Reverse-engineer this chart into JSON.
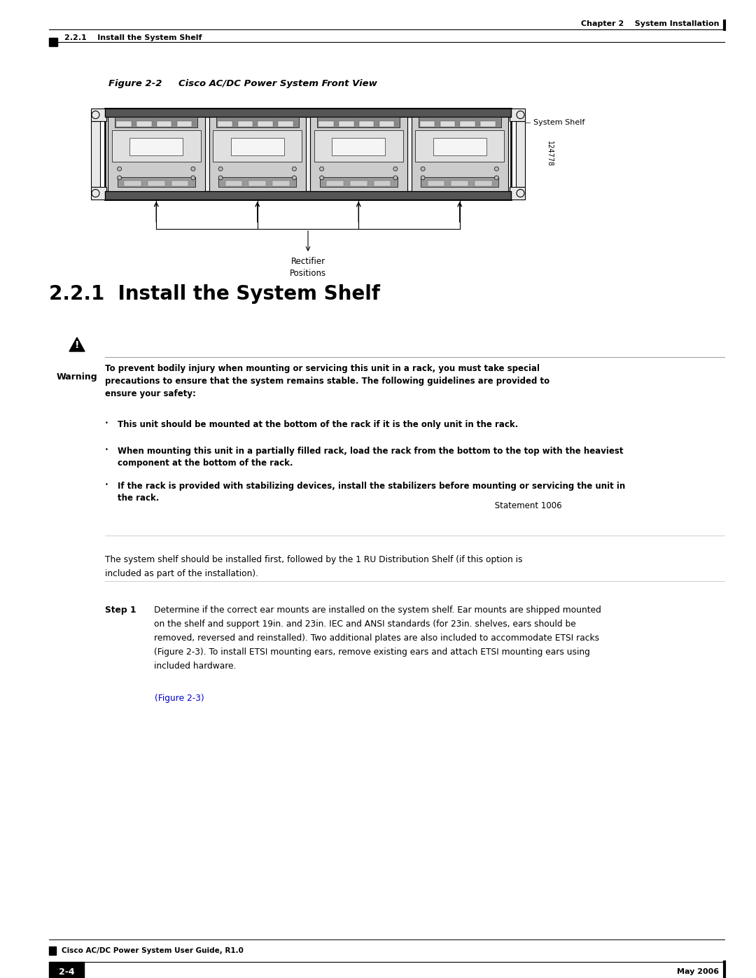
{
  "page_width": 10.8,
  "page_height": 13.97,
  "bg_color": "#ffffff",
  "header_text_right": "Chapter 2    System Installation",
  "header_text_left": "2.2.1    Install the System Shelf",
  "figure_label": "Figure 2-2",
  "figure_title": "Cisco AC/DC Power System Front View",
  "system_shelf_label": "System Shelf",
  "rectifier_label_line1": "Rectifier",
  "rectifier_label_line2": "Positions",
  "figure_number_sideways": "124778",
  "section_title": "2.2.1  Install the System Shelf",
  "warning_label": "Warning",
  "warning_bold_text": "To prevent bodily injury when mounting or servicing this unit in a rack, you must take special\nprecautions to ensure that the system remains stable. The following guidelines are provided to\nensure your safety:",
  "bullet1_bold": "This unit should be mounted at the bottom of the rack if it is the only unit in the rack.",
  "bullet2_bold": "When mounting this unit in a partially filled rack, load the rack from the bottom to the top with the heaviest\ncomponent at the bottom of the rack.",
  "bullet3_bold": "If the rack is provided with stabilizing devices, install the stabilizers before mounting or servicing the unit in\nthe rack.",
  "bullet3_normal": " Statement 1006",
  "body_text": "The system shelf should be installed first, followed by the 1 RU Distribution Shelf (if this option is\nincluded as part of the installation).",
  "step1_label": "Step 1",
  "step1_text_part1": "Determine if the correct ear mounts are installed on the system shelf. Ear mounts are shipped mounted\non the shelf and support 19in. and 23in. IEC and ANSI standards (for 23in. shelves, ears should be\nremoved, reversed and reinstalled). Two additional plates are also included to accommodate ETSI racks\n(",
  "step1_link": "Figure 2-3",
  "step1_text_part2": "). To install ETSI mounting ears, remove existing ears and attach ETSI mounting ears using\nincluded hardware.",
  "footer_left_small": "Cisco AC/DC Power System User Guide, R1.0",
  "footer_right": "May 2006",
  "footer_page": "2-4"
}
